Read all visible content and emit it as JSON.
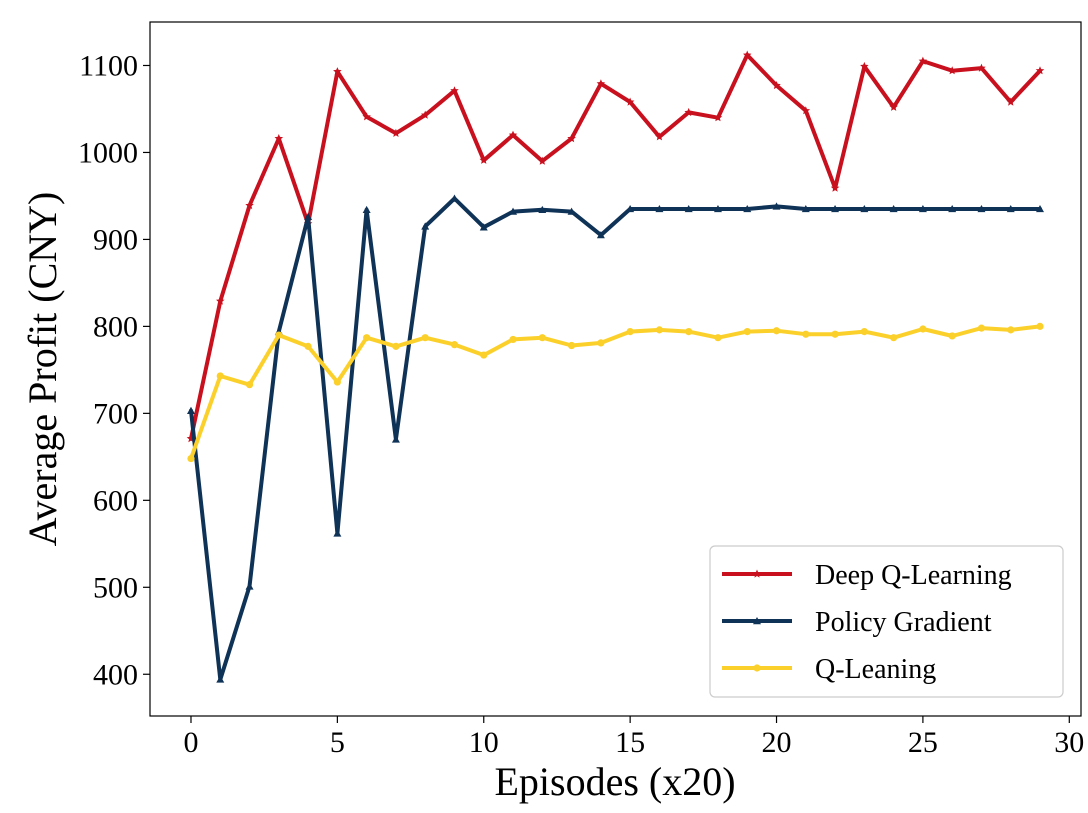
{
  "chart_data": {
    "type": "line",
    "title": "",
    "xlabel": "Episodes (x20)",
    "ylabel": "Average Profit (CNY)",
    "xlim": [
      -1.4,
      30.4
    ],
    "ylim": [
      352,
      1150
    ],
    "xticks": [
      0,
      5,
      10,
      15,
      20,
      25,
      30
    ],
    "yticks": [
      400,
      500,
      600,
      700,
      800,
      900,
      1000,
      1100
    ],
    "grid": false,
    "legend_position": "lower-right",
    "x": [
      0,
      1,
      2,
      3,
      4,
      5,
      6,
      7,
      8,
      9,
      10,
      11,
      12,
      13,
      14,
      15,
      16,
      17,
      18,
      19,
      20,
      21,
      22,
      23,
      24,
      25,
      26,
      27,
      28,
      29
    ],
    "series": [
      {
        "name": "Deep Q-Learning",
        "color": "#c8101e",
        "marker": "star",
        "values": [
          671,
          829,
          939,
          1016,
          918,
          1093,
          1041,
          1022,
          1043,
          1071,
          991,
          1020,
          990,
          1016,
          1079,
          1058,
          1018,
          1046,
          1040,
          1112,
          1077,
          1048,
          959,
          1099,
          1052,
          1105,
          1094,
          1097,
          1058,
          1094
        ]
      },
      {
        "name": "Policy Gradient",
        "color": "#0f3257",
        "marker": "triangle",
        "values": [
          703,
          394,
          501,
          794,
          926,
          562,
          934,
          670,
          915,
          947,
          914,
          932,
          934,
          932,
          905,
          935,
          935,
          935,
          935,
          935,
          938,
          935,
          935,
          935,
          935,
          935,
          935,
          935,
          935,
          935
        ]
      },
      {
        "name": "Q-Leaning",
        "color": "#fcd02a",
        "marker": "circle",
        "values": [
          648,
          743,
          733,
          790,
          777,
          736,
          787,
          777,
          787,
          779,
          767,
          785,
          787,
          778,
          781,
          794,
          796,
          794,
          787,
          794,
          795,
          791,
          791,
          794,
          787,
          797,
          789,
          798,
          796,
          800
        ]
      }
    ]
  }
}
